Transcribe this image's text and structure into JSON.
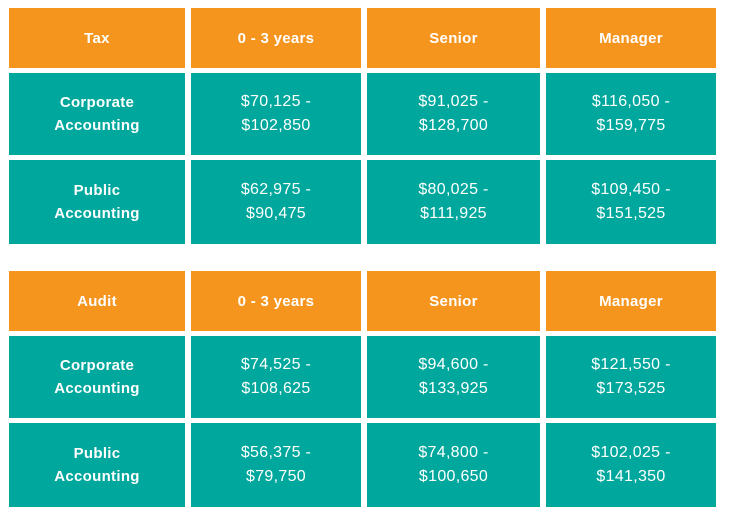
{
  "colors": {
    "header_bg": "#F6951E",
    "cell_bg": "#00A79C",
    "text": "#FFFFFF",
    "page_bg": "#FFFFFF"
  },
  "tables": [
    {
      "title": "Tax",
      "header": [
        "Tax",
        "0 - 3 years",
        "Senior",
        "Manager"
      ],
      "rows": [
        {
          "label": "Corporate\nAccounting",
          "values": [
            "$70,125 -\n$102,850",
            "$91,025 -\n$128,700",
            "$116,050 -\n$159,775"
          ]
        },
        {
          "label": "Public\nAccounting",
          "values": [
            "$62,975 -\n$90,475",
            "$80,025 -\n$111,925",
            "$109,450 -\n$151,525"
          ]
        }
      ]
    },
    {
      "title": "Audit",
      "header": [
        "Audit",
        "0 - 3 years",
        "Senior",
        "Manager"
      ],
      "rows": [
        {
          "label": "Corporate\nAccounting",
          "values": [
            "$74,525 -\n$108,625",
            "$94,600 -\n$133,925",
            "$121,550 -\n$173,525"
          ]
        },
        {
          "label": "Public\nAccounting",
          "values": [
            "$56,375 -\n$79,750",
            "$74,800 -\n$100,650",
            "$102,025 -\n$141,350"
          ]
        }
      ]
    }
  ],
  "chart_data": [
    {
      "type": "table",
      "title": "Tax",
      "columns": [
        "Tax",
        "0 - 3 years",
        "Senior",
        "Manager"
      ],
      "rows": [
        [
          "Corporate Accounting",
          "$70,125 - $102,850",
          "$91,025 - $128,700",
          "$116,050 - $159,775"
        ],
        [
          "Public Accounting",
          "$62,975 - $90,475",
          "$80,025 - $111,925",
          "$109,450 - $151,525"
        ]
      ]
    },
    {
      "type": "table",
      "title": "Audit",
      "columns": [
        "Audit",
        "0 - 3 years",
        "Senior",
        "Manager"
      ],
      "rows": [
        [
          "Corporate Accounting",
          "$74,525 - $108,625",
          "$94,600 - $133,925",
          "$121,550 - $173,525"
        ],
        [
          "Public Accounting",
          "$56,375 - $79,750",
          "$74,800 - $100,650",
          "$102,025 - $141,350"
        ]
      ]
    }
  ]
}
